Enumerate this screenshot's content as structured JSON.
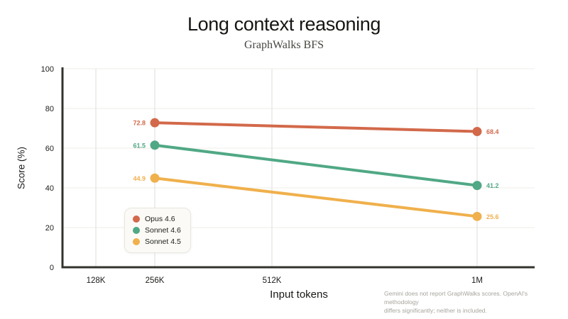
{
  "header": {
    "title": "Long context reasoning",
    "subtitle": "GraphWalks BFS"
  },
  "footnote": {
    "line1": "Gemini does not report GraphWalks scores. OpenAI's methodology",
    "line2": "differs significantly; neither is included."
  },
  "colors": {
    "opus": "#D2694A",
    "sonnet_46": "#50A885",
    "sonnet_45": "#F0B04C",
    "axis": "#33332E",
    "tick_label": "#1B1B19",
    "grid_horizontal": "#EFEDE7",
    "grid_vertical": "#DEDDD8",
    "legend_background": "#FBFAF6",
    "legend_border": "#E9E6DF",
    "footnote_text": "#A6A49D"
  },
  "chart_data": {
    "type": "line",
    "title": "Long context reasoning",
    "subtitle": "GraphWalks BFS",
    "xlabel": "Input tokens",
    "ylabel": "Score (%)",
    "x_tick_labels": [
      "128K",
      "256K",
      "512K",
      "1M"
    ],
    "y_tick_labels": [
      0,
      20,
      40,
      60,
      80,
      100
    ],
    "ylim": [
      0,
      100
    ],
    "grid": true,
    "legend_position": "lower-left",
    "series": [
      {
        "name": "Opus 4.6",
        "color": "#D2694A",
        "x": [
          "256K",
          "1M"
        ],
        "values": [
          72.8,
          68.4
        ]
      },
      {
        "name": "Sonnet 4.6",
        "color": "#50A885",
        "x": [
          "256K",
          "1M"
        ],
        "values": [
          61.5,
          41.2
        ]
      },
      {
        "name": "Sonnet 4.5",
        "color": "#F0B04C",
        "x": [
          "256K",
          "1M"
        ],
        "values": [
          44.9,
          25.6
        ]
      }
    ]
  }
}
